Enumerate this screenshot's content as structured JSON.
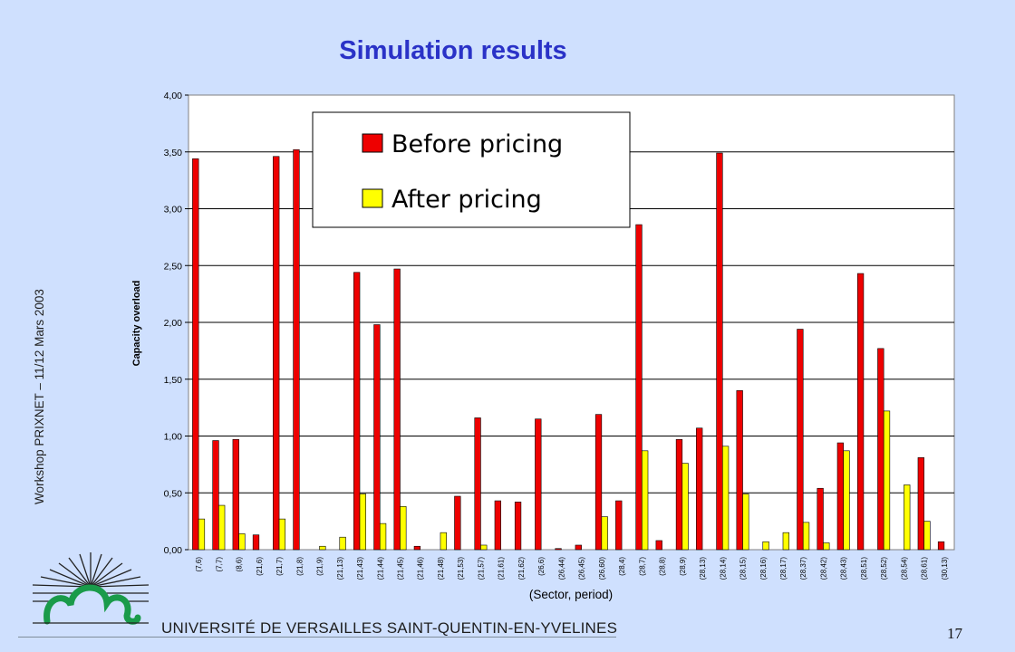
{
  "slide": {
    "title": "Simulation results",
    "side_text": "Workshop PRIXNET – 11/12 Mars 2003",
    "university": "UNIVERSITÉ DE VERSAILLES SAINT-QUENTIN-EN-YVELINES",
    "page_number": "17",
    "logo_icon": "sun-over-hills-logo-icon"
  },
  "chart_data": {
    "type": "bar",
    "xlabel": "(Sector, period)",
    "ylabel": "Capacity overload",
    "ylim": [
      0,
      4
    ],
    "yticks": [
      "0,00",
      "0,50",
      "1,00",
      "1,50",
      "2,00",
      "2,50",
      "3,00",
      "3,50",
      "4,00"
    ],
    "grid": true,
    "legend_position": "top-left",
    "categories": [
      "(7,6)",
      "(7,7)",
      "(8,6)",
      "(21,6)",
      "(21,7)",
      "(21,8)",
      "(21,9)",
      "(21,13)",
      "(21,43)",
      "(21,44)",
      "(21,45)",
      "(21,46)",
      "(21,48)",
      "(21,53)",
      "(21,57)",
      "(21,61)",
      "(21,62)",
      "(26,6)",
      "(26,44)",
      "(26,45)",
      "(26,60)",
      "(28,4)",
      "(28,7)",
      "(28,8)",
      "(28,9)",
      "(28,13)",
      "(28,14)",
      "(28,15)",
      "(28,16)",
      "(28,17)",
      "(28,37)",
      "(28,42)",
      "(28,43)",
      "(28,51)",
      "(28,52)",
      "(28,54)",
      "(28,61)",
      "(30,13)"
    ],
    "series": [
      {
        "name": "Before pricing",
        "color": "#ee0000",
        "values": [
          3.44,
          0.96,
          0.97,
          0.13,
          3.46,
          3.52,
          0.0,
          0.0,
          2.44,
          1.98,
          2.47,
          0.03,
          0.0,
          0.47,
          1.16,
          0.43,
          0.42,
          1.15,
          0.01,
          0.04,
          1.19,
          0.43,
          2.86,
          0.08,
          0.97,
          1.07,
          3.49,
          1.4,
          0.0,
          0.0,
          1.94,
          0.54,
          0.94,
          2.43,
          1.77,
          0.0,
          0.81,
          0.07
        ]
      },
      {
        "name": "After pricing",
        "color": "#ffff00",
        "values": [
          0.27,
          0.39,
          0.14,
          0.0,
          0.27,
          0.0,
          0.03,
          0.11,
          0.49,
          0.23,
          0.38,
          0.0,
          0.15,
          0.0,
          0.04,
          0.0,
          0.0,
          0.0,
          0.0,
          0.0,
          0.29,
          0.0,
          0.87,
          0.0,
          0.76,
          0.0,
          0.91,
          0.49,
          0.07,
          0.15,
          0.24,
          0.06,
          0.87,
          0.0,
          1.22,
          0.57,
          0.25,
          0.0
        ]
      }
    ]
  }
}
